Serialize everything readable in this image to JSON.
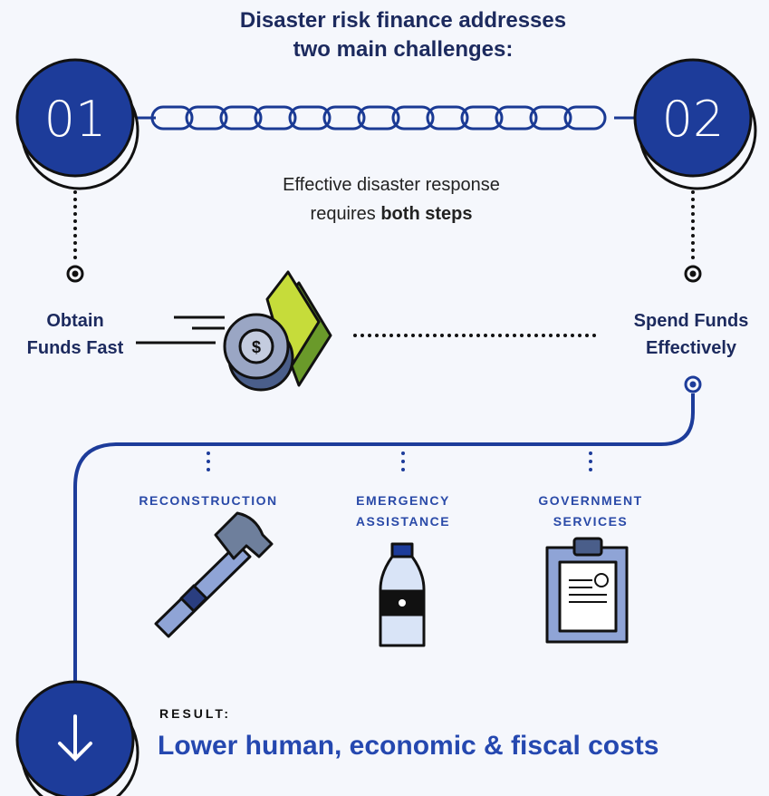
{
  "header": {
    "title": [
      "Disaster risk finance addresses",
      "two main challenges:"
    ]
  },
  "steps": [
    {
      "number": "01",
      "label": [
        "Obtain",
        "Funds Fast"
      ]
    },
    {
      "number": "02",
      "label": [
        "Spend Funds",
        "Effectively"
      ]
    }
  ],
  "note": {
    "line1": "Effective disaster response",
    "line2": "requires ",
    "line2_bold": "both steps"
  },
  "icon": {
    "coin_symbol": "$"
  },
  "uses": [
    {
      "label": [
        "RECONSTRUCTION"
      ]
    },
    {
      "label": [
        "EMERGENCY",
        "ASSISTANCE"
      ]
    },
    {
      "label": [
        "GOVERNMENT",
        "SERVICES"
      ]
    }
  ],
  "result": {
    "label": "RESULT:",
    "text": "Lower human, economic & fiscal costs"
  }
}
